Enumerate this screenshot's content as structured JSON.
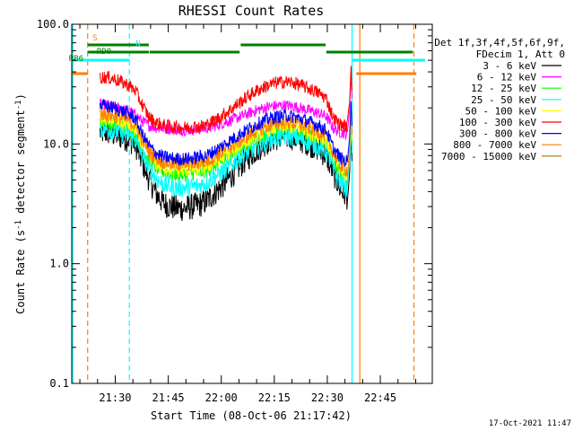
{
  "chart_data": {
    "type": "line",
    "title": "RHESSI Count Rates",
    "xlabel": "Start Time (08-Oct-06 21:17:42)",
    "ylabel_main": "Count Rate (s",
    "ylabel_sup1": "-1",
    "ylabel_mid": " detector segment",
    "ylabel_sup2": "-1",
    "ylabel_end": ")",
    "y_scale": "log",
    "ylim": [
      0.1,
      100
    ],
    "xlim_minutes": [
      0,
      102
    ],
    "y_ticks": [
      {
        "value": 0.1,
        "label": "0.1"
      },
      {
        "value": 1,
        "label": "1.0"
      },
      {
        "value": 10,
        "label": "10.0"
      },
      {
        "value": 100,
        "label": "100.0"
      }
    ],
    "x_ticks": [
      {
        "minutes": 12.3,
        "label": "21:30"
      },
      {
        "minutes": 27.3,
        "label": "21:45"
      },
      {
        "minutes": 42.3,
        "label": "22:00"
      },
      {
        "minutes": 57.3,
        "label": "22:15"
      },
      {
        "minutes": 72.3,
        "label": "22:30"
      },
      {
        "minutes": 87.3,
        "label": "22:45"
      }
    ],
    "legend_header": [
      "Det 1f,3f,4f,5f,6f,9f,",
      "FDecim 1, Att 0"
    ],
    "legend_placement": "right",
    "timestamp": "17-Oct-2021 11:47",
    "annotations": [
      {
        "text": "S",
        "color": "#ff7f00",
        "segments": [
          [
            0,
            4.5
          ],
          [
            80.5,
            97.5
          ]
        ],
        "y": 82
      },
      {
        "text": "N",
        "color": "#00ffff",
        "segments": [
          [
            0,
            16.3
          ],
          [
            79.3,
            100
          ]
        ],
        "y": 67
      },
      {
        "text": "RD0",
        "color": "#008000",
        "segments": [
          [
            4.5,
            21.8
          ],
          [
            22.0,
            47.5
          ],
          [
            72.0,
            96.5
          ]
        ],
        "y": 58
      },
      {
        "text": "RB6",
        "color": "#008000",
        "segments": [
          [
            4.5,
            21.8
          ],
          [
            47.8,
            71.8
          ]
        ],
        "y": 50
      }
    ],
    "vertical_markers": [
      {
        "minutes": 0.3,
        "color": "#00ffff",
        "style": "solid"
      },
      {
        "minutes": 4.5,
        "color": "#ff7f00",
        "style": "dashed"
      },
      {
        "minutes": 16.3,
        "color": "#00ffff",
        "style": "dashed"
      },
      {
        "minutes": 79.3,
        "color": "#00ffff",
        "style": "solid"
      },
      {
        "minutes": 81.5,
        "color": "#ff7f00",
        "style": "solid"
      },
      {
        "minutes": 96.8,
        "color": "#ff7f00",
        "style": "dashed"
      }
    ],
    "time_minutes": [
      8,
      10,
      12,
      14,
      16,
      18,
      20,
      22,
      24,
      26,
      28,
      30,
      32,
      34,
      36,
      38,
      40,
      42,
      44,
      46,
      48,
      50,
      52,
      54,
      56,
      58,
      60,
      62,
      64,
      66,
      68,
      70,
      72,
      74,
      76,
      78
    ],
    "series": [
      {
        "name": "3 - 6 keV",
        "color": "#000000",
        "noise": 0.07,
        "values": [
          12.5,
          12.5,
          12.0,
          11.5,
          11.0,
          10.0,
          7.0,
          5.0,
          3.8,
          3.2,
          3.0,
          2.9,
          2.9,
          3.0,
          3.1,
          3.3,
          3.8,
          4.3,
          5.0,
          5.8,
          6.8,
          7.8,
          8.8,
          9.8,
          10.8,
          11.3,
          11.5,
          11.5,
          11.0,
          10.5,
          9.8,
          9.0,
          8.0,
          5.8,
          4.2,
          3.6
        ]
      },
      {
        "name": "6 - 12 keV",
        "color": "#ff00ff",
        "noise": 0.03,
        "values": [
          21.5,
          21.0,
          20.5,
          19.5,
          19.0,
          17.5,
          15.5,
          14.2,
          13.7,
          13.5,
          13.3,
          13.1,
          13.1,
          13.2,
          13.3,
          13.5,
          14.0,
          14.6,
          15.4,
          16.2,
          17.0,
          18.0,
          19.0,
          19.8,
          20.5,
          20.8,
          21.0,
          20.8,
          20.2,
          19.5,
          18.8,
          18.0,
          17.0,
          13.5,
          12.5,
          12.0
        ]
      },
      {
        "name": "12 - 25 keV",
        "color": "#00ff00",
        "noise": 0.04,
        "values": [
          15.0,
          14.7,
          14.3,
          13.8,
          13.3,
          12.0,
          9.0,
          7.2,
          6.3,
          5.9,
          5.7,
          5.6,
          5.6,
          5.7,
          5.8,
          6.0,
          6.5,
          7.0,
          7.7,
          8.4,
          9.2,
          10.0,
          10.9,
          11.6,
          12.3,
          12.7,
          12.9,
          12.9,
          12.5,
          12.0,
          11.4,
          10.8,
          10.0,
          7.3,
          5.7,
          5.1
        ]
      },
      {
        "name": "25 - 50 keV",
        "color": "#00ffff",
        "noise": 0.05,
        "values": [
          13.5,
          13.3,
          12.9,
          12.4,
          11.9,
          10.8,
          8.0,
          6.1,
          5.1,
          4.6,
          4.4,
          4.3,
          4.3,
          4.4,
          4.5,
          4.7,
          5.2,
          5.7,
          6.3,
          7.0,
          7.8,
          8.6,
          9.5,
          10.2,
          10.9,
          11.3,
          11.5,
          11.5,
          11.1,
          10.6,
          10.0,
          9.4,
          8.6,
          6.2,
          4.7,
          4.2
        ]
      },
      {
        "name": "50 - 100 keV",
        "color": "#ffff00",
        "noise": 0.04,
        "values": [
          16.5,
          16.2,
          15.8,
          15.2,
          14.6,
          13.2,
          10.0,
          7.9,
          6.9,
          6.4,
          6.2,
          6.1,
          6.1,
          6.2,
          6.3,
          6.5,
          7.0,
          7.5,
          8.3,
          9.0,
          9.9,
          10.8,
          11.7,
          12.5,
          13.3,
          13.8,
          14.0,
          14.0,
          13.6,
          13.0,
          12.3,
          11.6,
          10.8,
          7.8,
          6.0,
          5.4
        ]
      },
      {
        "name": "100 - 300 keV",
        "color": "#ff0000",
        "noise": 0.035,
        "values": [
          36.0,
          36.0,
          35.0,
          33.0,
          31.0,
          28.0,
          21.0,
          16.5,
          15.0,
          14.3,
          14.0,
          13.8,
          13.7,
          13.8,
          14.0,
          14.4,
          15.4,
          16.8,
          18.5,
          20.5,
          22.8,
          25.2,
          27.5,
          29.5,
          31.2,
          32.5,
          33.0,
          32.8,
          31.5,
          30.0,
          28.3,
          26.5,
          24.0,
          16.5,
          14.5,
          14.0
        ]
      },
      {
        "name": "300 - 800 keV",
        "color": "#0000ff",
        "noise": 0.035,
        "values": [
          21.0,
          20.5,
          20.0,
          19.0,
          18.0,
          16.2,
          12.0,
          9.5,
          8.3,
          7.8,
          7.6,
          7.5,
          7.5,
          7.6,
          7.8,
          8.0,
          8.6,
          9.4,
          10.3,
          11.2,
          12.3,
          13.3,
          14.4,
          15.4,
          16.3,
          16.9,
          17.2,
          17.1,
          16.5,
          15.8,
          15.0,
          14.1,
          13.0,
          9.2,
          7.6,
          7.1
        ]
      },
      {
        "name": "800 - 7000 keV",
        "color": "#ff7f00",
        "noise": 0.04,
        "values": [
          18.0,
          17.6,
          17.1,
          16.4,
          15.8,
          14.3,
          10.8,
          8.6,
          7.6,
          7.1,
          6.9,
          6.8,
          6.8,
          6.9,
          7.0,
          7.2,
          7.7,
          8.3,
          9.1,
          9.9,
          10.8,
          11.8,
          12.8,
          13.6,
          14.4,
          15.0,
          15.2,
          15.2,
          14.7,
          14.1,
          13.4,
          12.6,
          11.7,
          8.4,
          6.6,
          6.0
        ]
      },
      {
        "name": "7000 - 15000 keV",
        "color": "#a07800",
        "noise": 0.0,
        "values": []
      }
    ]
  }
}
